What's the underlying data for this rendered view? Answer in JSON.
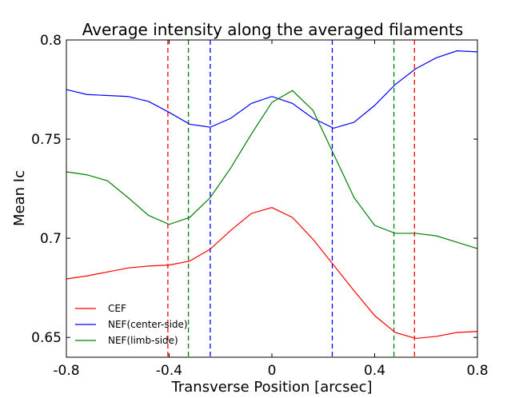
{
  "chart_data": {
    "type": "line",
    "title": "Average intensity along the averaged filaments",
    "xlabel": "Transverse Position [arcsec]",
    "ylabel": "Mean Ic",
    "xlim": [
      -0.8,
      0.8
    ],
    "ylim": [
      0.64,
      0.8
    ],
    "xticks": [
      -0.8,
      -0.4,
      0,
      0.4,
      0.8
    ],
    "xtick_labels": [
      "-0.8",
      "-0.4",
      "0",
      "0.4",
      "0.8"
    ],
    "yticks": [
      0.65,
      0.7,
      0.75,
      0.8
    ],
    "ytick_labels": [
      "0.65",
      "0.7",
      "0.75",
      "0.8"
    ],
    "grid": false,
    "legend_position": "bottom-left",
    "series": [
      {
        "name": "CEF",
        "color": "#ff0000",
        "x": [
          -0.8,
          -0.72,
          -0.64,
          -0.56,
          -0.48,
          -0.4,
          -0.32,
          -0.24,
          -0.16,
          -0.08,
          0.0,
          0.08,
          0.16,
          0.24,
          0.32,
          0.4,
          0.48,
          0.56,
          0.64,
          0.72,
          0.8
        ],
        "y": [
          0.6795,
          0.681,
          0.683,
          0.685,
          0.686,
          0.6865,
          0.6885,
          0.6945,
          0.704,
          0.7125,
          0.7155,
          0.7105,
          0.6995,
          0.6865,
          0.6735,
          0.661,
          0.6525,
          0.6495,
          0.6505,
          0.6525,
          0.653
        ]
      },
      {
        "name": "NEF(center-side)",
        "color": "#0000ff",
        "x": [
          -0.8,
          -0.72,
          -0.64,
          -0.56,
          -0.48,
          -0.4,
          -0.32,
          -0.24,
          -0.16,
          -0.08,
          0.0,
          0.08,
          0.16,
          0.24,
          0.32,
          0.4,
          0.48,
          0.56,
          0.64,
          0.72,
          0.8
        ],
        "y": [
          0.775,
          0.7725,
          0.772,
          0.7715,
          0.769,
          0.7635,
          0.7575,
          0.756,
          0.7605,
          0.768,
          0.7715,
          0.768,
          0.7605,
          0.7555,
          0.7585,
          0.767,
          0.7775,
          0.7855,
          0.791,
          0.7945,
          0.794
        ]
      },
      {
        "name": "NEF(limb-side)",
        "color": "#008000",
        "x": [
          -0.8,
          -0.72,
          -0.64,
          -0.56,
          -0.48,
          -0.4,
          -0.32,
          -0.24,
          -0.16,
          -0.08,
          0.0,
          0.08,
          0.16,
          0.24,
          0.32,
          0.4,
          0.48,
          0.56,
          0.64,
          0.72,
          0.8
        ],
        "y": [
          0.7335,
          0.732,
          0.729,
          0.7205,
          0.7115,
          0.707,
          0.7105,
          0.7205,
          0.7355,
          0.7525,
          0.7685,
          0.7745,
          0.7645,
          0.7425,
          0.7205,
          0.7065,
          0.7025,
          0.7025,
          0.7012,
          0.698,
          0.6948
        ]
      }
    ],
    "vlines": [
      {
        "x": -0.405,
        "color": "#ff0000"
      },
      {
        "x": -0.325,
        "color": "#008000"
      },
      {
        "x": -0.24,
        "color": "#0000ff"
      },
      {
        "x": 0.235,
        "color": "#0000ff"
      },
      {
        "x": 0.475,
        "color": "#008000"
      },
      {
        "x": 0.555,
        "color": "#ff0000"
      }
    ]
  }
}
